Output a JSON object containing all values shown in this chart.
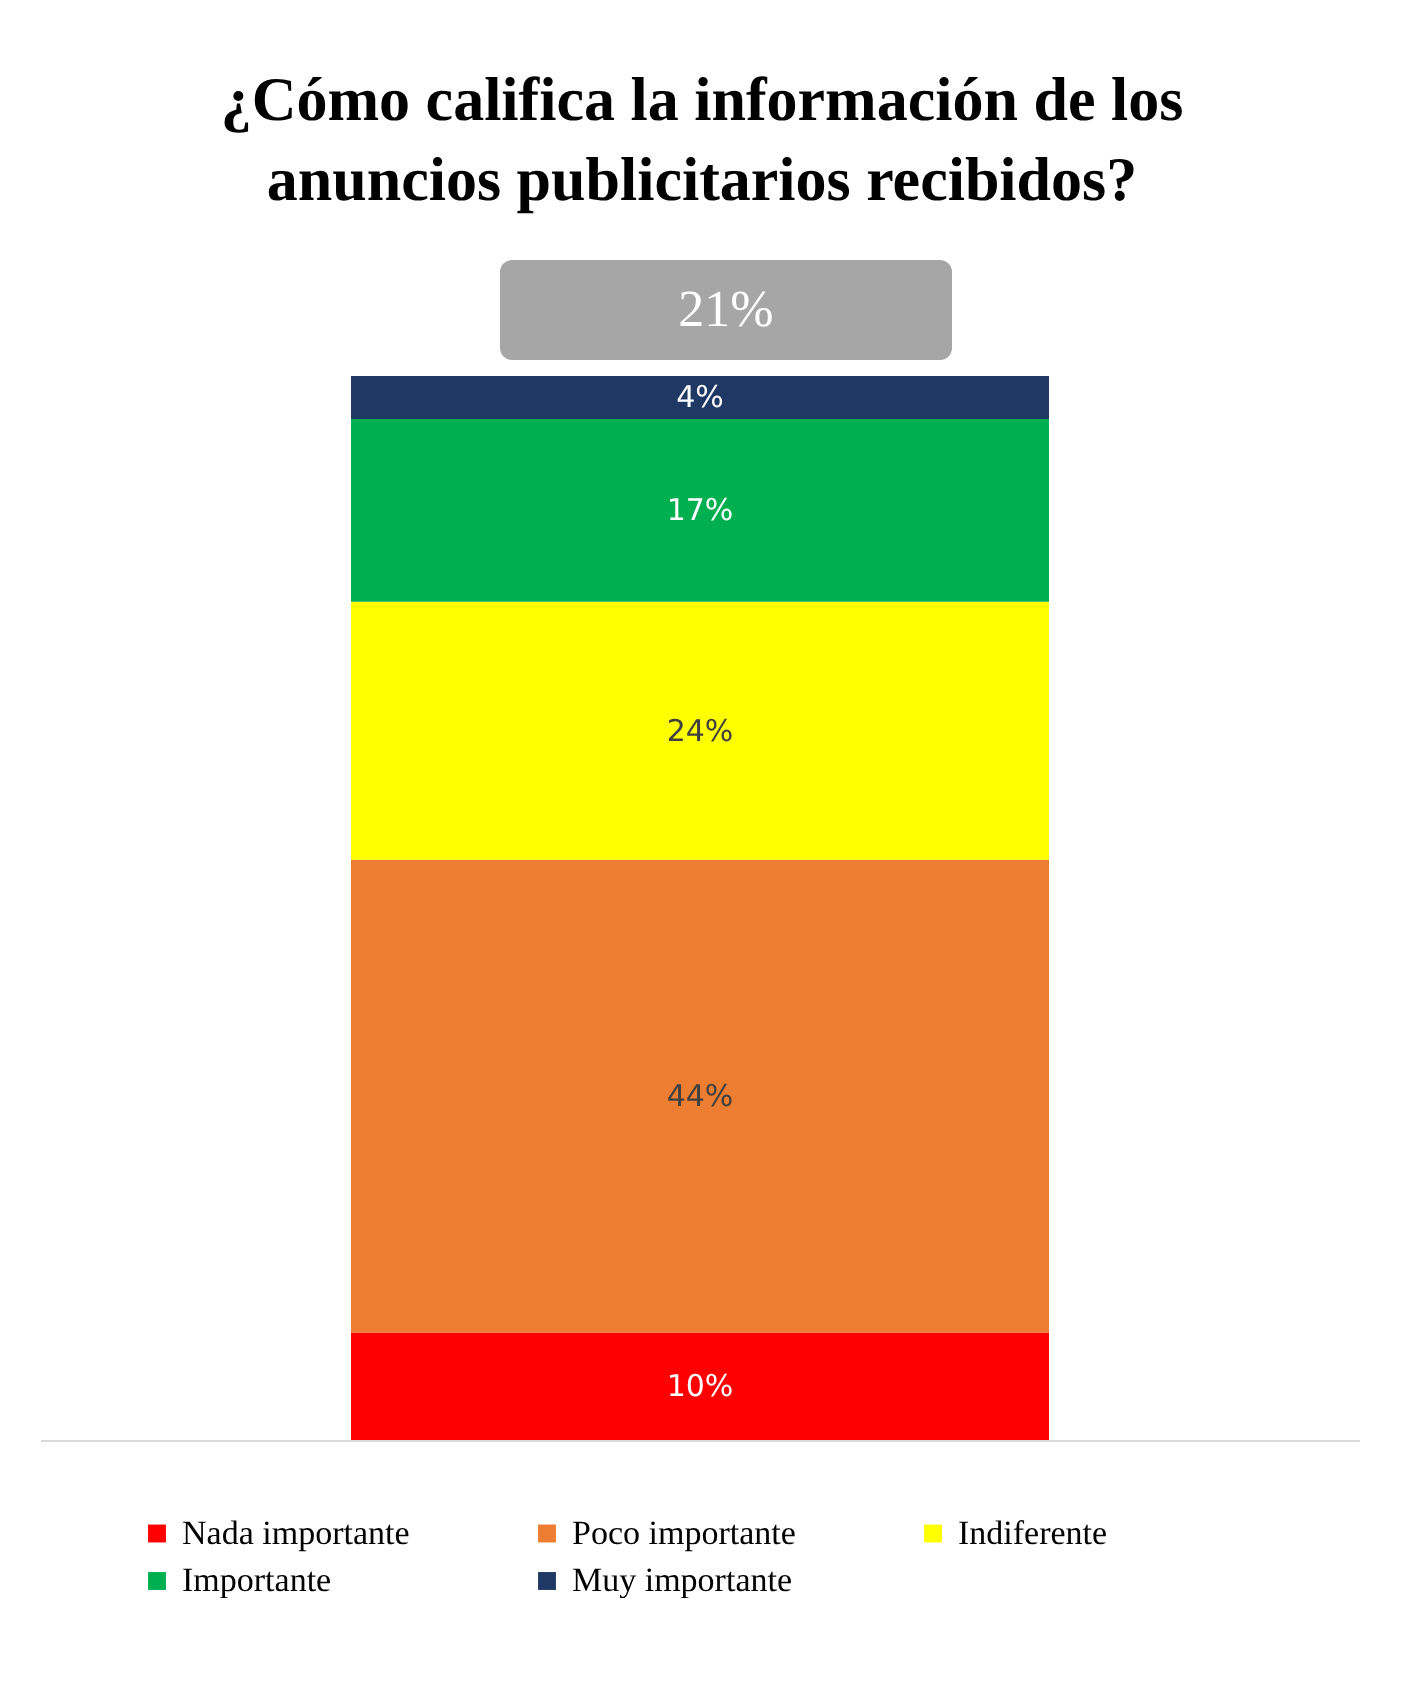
{
  "chart_data": {
    "type": "bar",
    "title": "¿Cómo califica la información de los anuncios publicitarios recibidos?",
    "stacked": true,
    "categories": [
      null
    ],
    "legend": "bottom",
    "grid": false,
    "annotations": [
      "21%"
    ],
    "series": [
      {
        "name": "Nada importante",
        "color": "#ff0000",
        "values": [
          10
        ],
        "value_labels": [
          "10%"
        ]
      },
      {
        "name": "Poco importante",
        "color": "#ed7d31",
        "values": [
          44
        ],
        "value_labels": [
          "44%"
        ]
      },
      {
        "name": "Indiferente",
        "color": "#ffff00",
        "values": [
          24
        ],
        "value_labels": [
          "24%"
        ]
      },
      {
        "name": "Importante",
        "color": "#00b050",
        "values": [
          17
        ],
        "value_labels": [
          "17%"
        ]
      },
      {
        "name": "Muy importante",
        "color": "#1f3864",
        "values": [
          4
        ],
        "value_labels": [
          "4%"
        ]
      }
    ]
  }
}
